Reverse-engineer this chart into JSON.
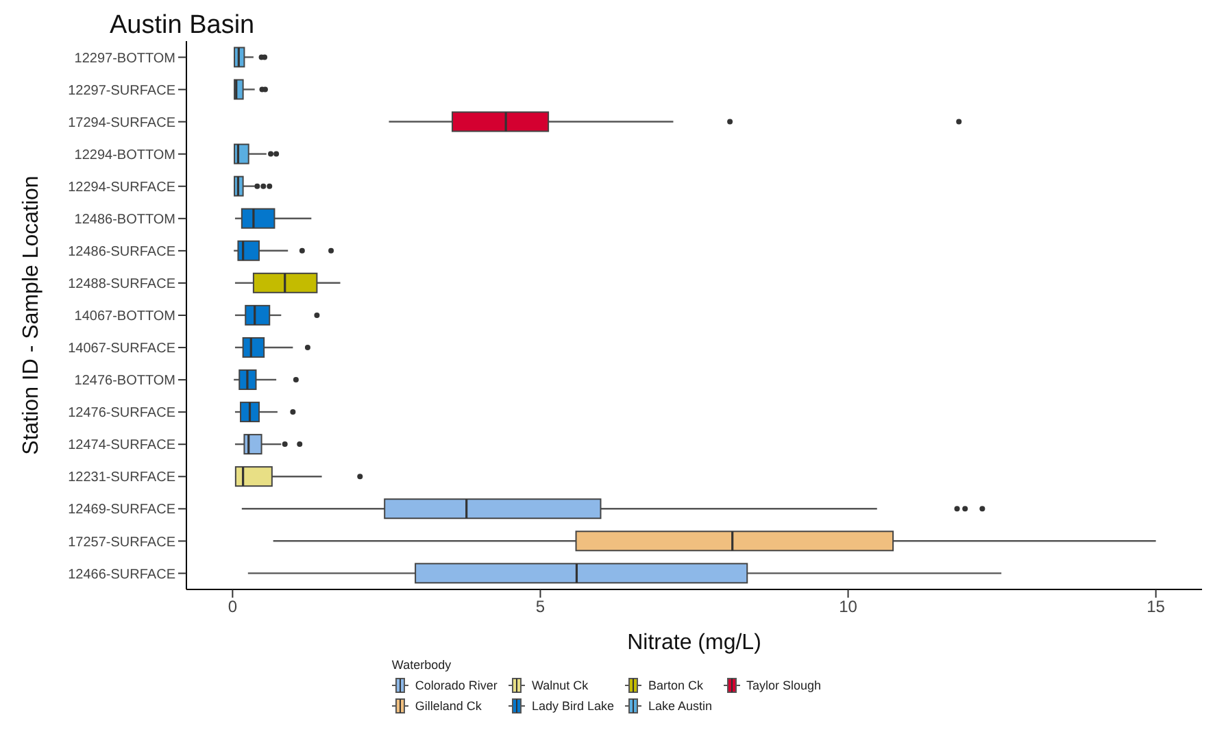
{
  "chart_data": {
    "type": "box",
    "title": "Austin Basin",
    "xlabel": "Nitrate (mg/L)",
    "ylabel": "Station ID - Sample Location",
    "legend_title": "Waterbody",
    "orientation": "horizontal",
    "legend": "bottom",
    "grid": false,
    "categories": [
      "12297-BOTTOM",
      "12297-SURFACE",
      "17294-SURFACE",
      "12294-BOTTOM",
      "12294-SURFACE",
      "12486-BOTTOM",
      "12486-SURFACE",
      "12488-SURFACE",
      "14067-BOTTOM",
      "14067-SURFACE",
      "12476-BOTTOM",
      "12476-SURFACE",
      "12474-SURFACE",
      "12231-SURFACE",
      "12469-SURFACE",
      "17257-SURFACE",
      "12466-SURFACE"
    ],
    "xlim": [
      -0.75,
      15.75
    ],
    "xticks": [
      0,
      5,
      10,
      15
    ],
    "series": [
      {
        "name": "Colorado River",
        "color": "#8db8e8",
        "boxes": [
          null,
          null,
          null,
          null,
          null,
          null,
          null,
          null,
          null,
          null,
          null,
          null,
          {
            "low": 0.04,
            "q1": 0.19,
            "median": 0.26,
            "q3": 0.47,
            "high": 0.79,
            "outliers": [
              0.85,
              1.09
            ]
          },
          null,
          {
            "low": 0.15,
            "q1": 2.47,
            "median": 3.8,
            "q3": 5.98,
            "high": 10.47,
            "outliers": [
              11.77,
              11.9,
              12.18
            ]
          },
          null,
          {
            "low": 0.25,
            "q1": 2.97,
            "median": 5.59,
            "q3": 8.36,
            "high": 12.49
          }
        ]
      },
      {
        "name": "Gilleland Ck",
        "color": "#f0bf7f",
        "boxes": [
          null,
          null,
          null,
          null,
          null,
          null,
          null,
          null,
          null,
          null,
          null,
          null,
          null,
          null,
          null,
          {
            "low": 0.66,
            "q1": 5.58,
            "median": 8.12,
            "q3": 10.73,
            "high": 15.0
          },
          null
        ]
      },
      {
        "name": "Walnut Ck",
        "color": "#e8df85",
        "boxes": [
          null,
          null,
          null,
          null,
          null,
          null,
          null,
          null,
          null,
          null,
          null,
          null,
          null,
          {
            "low": 0.04,
            "q1": 0.05,
            "median": 0.17,
            "q3": 0.64,
            "high": 1.45,
            "outliers": [
              2.07
            ]
          },
          null,
          null,
          null
        ]
      },
      {
        "name": "Lady Bird Lake",
        "color": "#0577cc",
        "boxes": [
          null,
          null,
          null,
          null,
          null,
          {
            "low": 0.04,
            "q1": 0.15,
            "median": 0.34,
            "q3": 0.68,
            "high": 1.28
          },
          {
            "low": 0.02,
            "q1": 0.09,
            "median": 0.17,
            "q3": 0.43,
            "high": 0.9,
            "outliers": [
              1.13,
              1.6
            ]
          },
          null,
          {
            "low": 0.04,
            "q1": 0.21,
            "median": 0.36,
            "q3": 0.6,
            "high": 0.79,
            "outliers": [
              1.37
            ]
          },
          {
            "low": 0.04,
            "q1": 0.17,
            "median": 0.3,
            "q3": 0.51,
            "high": 0.98,
            "outliers": [
              1.22
            ]
          },
          {
            "low": 0.02,
            "q1": 0.11,
            "median": 0.24,
            "q3": 0.38,
            "high": 0.71,
            "outliers": [
              1.03
            ]
          },
          {
            "low": 0.04,
            "q1": 0.13,
            "median": 0.28,
            "q3": 0.43,
            "high": 0.73,
            "outliers": [
              0.98
            ]
          },
          null,
          null,
          null,
          null,
          null
        ]
      },
      {
        "name": "Barton Ck",
        "color": "#c4bb00",
        "boxes": [
          null,
          null,
          null,
          null,
          null,
          null,
          null,
          {
            "low": 0.04,
            "q1": 0.34,
            "median": 0.85,
            "q3": 1.37,
            "high": 1.75
          },
          null,
          null,
          null,
          null,
          null,
          null,
          null,
          null,
          null
        ]
      },
      {
        "name": "Lake Austin",
        "color": "#5aaee0",
        "boxes": [
          {
            "low": 0.02,
            "q1": 0.03,
            "median": 0.1,
            "q3": 0.19,
            "high": 0.34,
            "outliers": [
              0.47,
              0.52
            ]
          },
          {
            "low": 0.02,
            "q1": 0.03,
            "median": 0.06,
            "q3": 0.17,
            "high": 0.36,
            "outliers": [
              0.48,
              0.53
            ]
          },
          null,
          {
            "low": 0.02,
            "q1": 0.03,
            "median": 0.09,
            "q3": 0.26,
            "high": 0.55,
            "outliers": [
              0.62,
              0.71
            ]
          },
          {
            "low": 0.02,
            "q1": 0.03,
            "median": 0.09,
            "q3": 0.17,
            "high": 0.36,
            "outliers": [
              0.4,
              0.5,
              0.6
            ]
          },
          null,
          null,
          null,
          null,
          null,
          null,
          null,
          null,
          null,
          null,
          null,
          null
        ]
      },
      {
        "name": "Taylor Slough",
        "color": "#d40030",
        "boxes": [
          null,
          null,
          {
            "low": 2.54,
            "q1": 3.57,
            "median": 4.44,
            "q3": 5.13,
            "high": 7.16,
            "outliers": [
              8.08,
              11.8
            ]
          },
          null,
          null,
          null,
          null,
          null,
          null,
          null,
          null,
          null,
          null,
          null,
          null,
          null,
          null
        ]
      }
    ]
  }
}
